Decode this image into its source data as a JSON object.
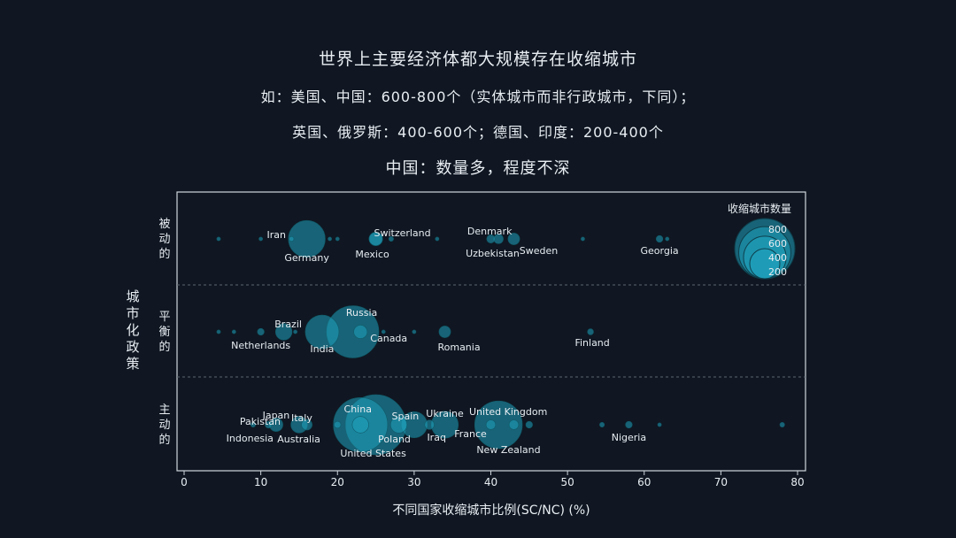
{
  "titles": {
    "line1": "世界上主要经济体都大规模存在收缩城市",
    "line2": "如：美国、中国：600-800个（实体城市而非行政城市，下同）；",
    "line3": "英国、俄罗斯：400-600个；德国、印度：200-400个",
    "line4": "中国：数量多，程度不深"
  },
  "colors": {
    "background": "#101722",
    "bubble": "#1fa3bd",
    "text": "#e8edf2",
    "axis": "#d0d6dc"
  },
  "chart_data": {
    "type": "scatter",
    "xlabel": "不同国家收缩城市比例(SC/NC) (%)",
    "ylabel": "城市化政策",
    "xlim": [
      0,
      80
    ],
    "xticks": [
      0,
      10,
      20,
      30,
      40,
      50,
      60,
      70,
      80
    ],
    "categories": [
      "被动的",
      "平衡的",
      "主动的"
    ],
    "legend": {
      "title": "收缩城市数量",
      "values": [
        800,
        600,
        400,
        200
      ],
      "labels": [
        "800",
        "600",
        "400",
        "200"
      ],
      "placement": "top-right"
    },
    "series": [
      {
        "category": "被动的",
        "points": [
          {
            "name": "Iran",
            "x": 14,
            "count": 5
          },
          {
            "name": "Germany",
            "x": 16,
            "count": 300
          },
          {
            "name": "Switzerland",
            "x": 25,
            "count": 40
          },
          {
            "name": "Mexico",
            "x": 25,
            "count": 40
          },
          {
            "name": "Denmark",
            "x": 41,
            "count": 20
          },
          {
            "name": "Uzbekistan",
            "x": 40,
            "count": 15
          },
          {
            "name": "Sweden",
            "x": 43,
            "count": 30
          },
          {
            "name": "Georgia",
            "x": 62,
            "count": 10
          },
          {
            "name": "",
            "x": 4.5,
            "count": 3
          },
          {
            "name": "",
            "x": 10,
            "count": 3
          },
          {
            "name": "",
            "x": 19,
            "count": 3
          },
          {
            "name": "",
            "x": 20,
            "count": 3
          },
          {
            "name": "",
            "x": 27,
            "count": 5
          },
          {
            "name": "",
            "x": 33,
            "count": 3
          },
          {
            "name": "",
            "x": 52,
            "count": 3
          },
          {
            "name": "",
            "x": 63,
            "count": 3
          }
        ]
      },
      {
        "category": "平衡的",
        "points": [
          {
            "name": "Brazil",
            "x": 13,
            "count": 60
          },
          {
            "name": "Netherlands",
            "x": 10,
            "count": 10
          },
          {
            "name": "India",
            "x": 18,
            "count": 250
          },
          {
            "name": "Russia",
            "x": 22,
            "count": 600
          },
          {
            "name": "Canada",
            "x": 23,
            "count": 40
          },
          {
            "name": "Romania",
            "x": 34,
            "count": 30
          },
          {
            "name": "Finland",
            "x": 53,
            "count": 8
          },
          {
            "name": "",
            "x": 4.5,
            "count": 3
          },
          {
            "name": "",
            "x": 6.5,
            "count": 3
          },
          {
            "name": "",
            "x": 14.5,
            "count": 3
          },
          {
            "name": "",
            "x": 26,
            "count": 3
          },
          {
            "name": "",
            "x": 30,
            "count": 3
          }
        ]
      },
      {
        "category": "主动的",
        "points": [
          {
            "name": "Pakistan",
            "x": 9,
            "count": 5
          },
          {
            "name": "Japan",
            "x": 12,
            "count": 40
          },
          {
            "name": "Italy",
            "x": 15,
            "count": 60
          },
          {
            "name": "Indonesia",
            "x": 11,
            "count": 10
          },
          {
            "name": "Australia",
            "x": 16,
            "count": 25
          },
          {
            "name": "China",
            "x": 23,
            "count": 650
          },
          {
            "name": "United States",
            "x": 25,
            "count": 800
          },
          {
            "name": "Spain",
            "x": 30,
            "count": 150
          },
          {
            "name": "Poland",
            "x": 28,
            "count": 60
          },
          {
            "name": "Ukraine",
            "x": 34,
            "count": 160
          },
          {
            "name": "Iraq",
            "x": 32,
            "count": 20
          },
          {
            "name": "United Kingdom",
            "x": 41,
            "count": 500
          },
          {
            "name": "France",
            "x": 40,
            "count": 20
          },
          {
            "name": "New Zealand",
            "x": 43,
            "count": 20
          },
          {
            "name": "Nigeria",
            "x": 58,
            "count": 10
          },
          {
            "name": "",
            "x": 20,
            "count": 10
          },
          {
            "name": "",
            "x": 23,
            "count": 60
          },
          {
            "name": "",
            "x": 45,
            "count": 10
          },
          {
            "name": "",
            "x": 54.5,
            "count": 5
          },
          {
            "name": "",
            "x": 62,
            "count": 3
          },
          {
            "name": "",
            "x": 78,
            "count": 5
          }
        ]
      }
    ]
  }
}
